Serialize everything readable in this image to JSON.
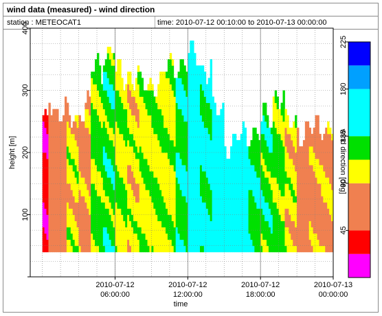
{
  "header": {
    "title": "wind data (measured) - wind direction",
    "station": "station : METEOCAT1",
    "timerange": "time: 2010-07-12 00:10:00 to 2010-07-13 00:00:00"
  },
  "colors": {
    "bins": [
      "#ff00ff",
      "#ff0000",
      "#f08050",
      "#ffff00",
      "#00e000",
      "#00ffff",
      "#00a0ff",
      "#0000ff"
    ]
  },
  "chart_data": {
    "type": "heatmap",
    "xlabel": "time",
    "ylabel": "height [m]",
    "colorbar_label": "wind direction [deg]",
    "ylim": [
      0,
      400
    ],
    "yticks": [
      100,
      200,
      300,
      400
    ],
    "xlim_hours": [
      -1.0,
      24.0
    ],
    "xticks": [
      {
        "hour": 6,
        "line1": "2010-07-12",
        "line2": "06:00:00"
      },
      {
        "hour": 12,
        "line1": "2010-07-12",
        "line2": "12:00:00"
      },
      {
        "hour": 18,
        "line1": "2010-07-12",
        "line2": "18:00:00"
      },
      {
        "hour": 24,
        "line1": "2010-07-13",
        "line2": "00:00:00"
      }
    ],
    "colorbar_ticks": [
      45,
      90,
      135,
      180,
      225
    ],
    "colorbar_range": [
      0,
      225
    ],
    "color_bins_deg": [
      [
        0,
        22.5
      ],
      [
        22.5,
        45
      ],
      [
        45,
        90
      ],
      [
        90,
        112.5
      ],
      [
        112.5,
        135
      ],
      [
        135,
        180
      ],
      [
        180,
        202.5
      ],
      [
        202.5,
        225
      ]
    ],
    "height_range_m": [
      40,
      400
    ],
    "time_step_minutes": 10,
    "series": [
      {
        "name": "wind direction",
        "segments": [
          {
            "t_start": 0.0,
            "t_end": 0.5,
            "dir": 30,
            "top": 240
          },
          {
            "t_start": 0.5,
            "t_end": 1.0,
            "dir": 60,
            "top": 280
          },
          {
            "t_start": 1.0,
            "t_end": 2.0,
            "dir": 75,
            "top": 260
          },
          {
            "t_start": 2.0,
            "t_end": 3.0,
            "dir": 100,
            "top": 250
          },
          {
            "t_start": 3.0,
            "t_end": 4.0,
            "dir": 80,
            "top": 270
          },
          {
            "t_start": 4.0,
            "t_end": 5.0,
            "dir": 120,
            "top": 330
          },
          {
            "t_start": 5.0,
            "t_end": 6.0,
            "dir": 125,
            "top": 360
          },
          {
            "t_start": 6.0,
            "t_end": 7.0,
            "dir": 110,
            "top": 320
          },
          {
            "t_start": 7.0,
            "t_end": 8.0,
            "dir": 100,
            "top": 320
          },
          {
            "t_start": 8.0,
            "t_end": 9.0,
            "dir": 105,
            "top": 300
          },
          {
            "t_start": 9.0,
            "t_end": 10.0,
            "dir": 110,
            "top": 310
          },
          {
            "t_start": 10.0,
            "t_end": 11.0,
            "dir": 105,
            "top": 330
          },
          {
            "t_start": 11.0,
            "t_end": 12.0,
            "dir": 130,
            "top": 340
          },
          {
            "t_start": 12.0,
            "t_end": 13.0,
            "dir": 150,
            "top": 350
          },
          {
            "t_start": 13.0,
            "t_end": 14.0,
            "dir": 140,
            "top": 330
          },
          {
            "t_start": 14.0,
            "t_end": 15.0,
            "dir": 150,
            "top": 260
          },
          {
            "t_start": 15.0,
            "t_end": 16.0,
            "dir": 155,
            "top": 210
          },
          {
            "t_start": 16.0,
            "t_end": 17.0,
            "dir": 150,
            "top": 220
          },
          {
            "t_start": 17.0,
            "t_end": 18.0,
            "dir": 130,
            "top": 230
          },
          {
            "t_start": 18.0,
            "t_end": 19.0,
            "dir": 125,
            "top": 250
          },
          {
            "t_start": 19.0,
            "t_end": 20.0,
            "dir": 120,
            "top": 290
          },
          {
            "t_start": 20.0,
            "t_end": 21.0,
            "dir": 100,
            "top": 240
          },
          {
            "t_start": 21.0,
            "t_end": 22.0,
            "dir": 75,
            "top": 230
          },
          {
            "t_start": 22.0,
            "t_end": 23.0,
            "dir": 80,
            "top": 230
          },
          {
            "t_start": 23.0,
            "t_end": 24.0,
            "dir": 85,
            "top": 240
          }
        ]
      }
    ]
  }
}
